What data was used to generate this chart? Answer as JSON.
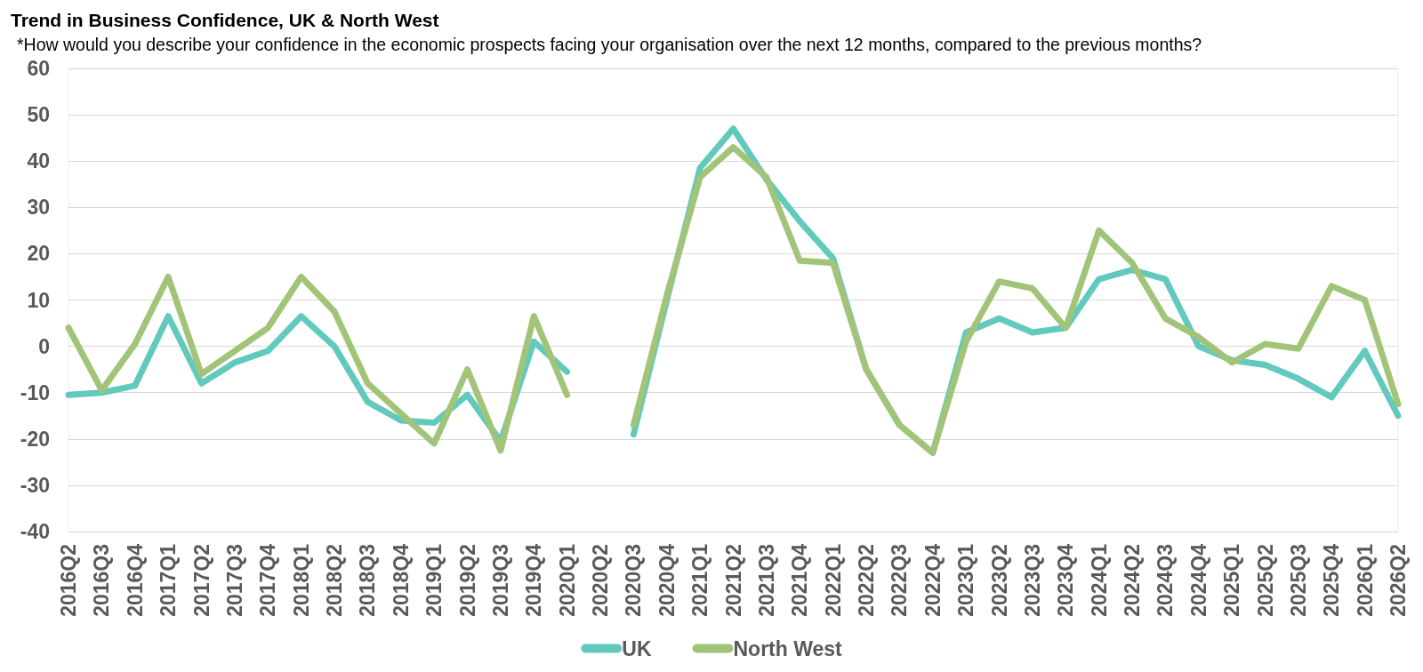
{
  "chart_data": {
    "type": "line",
    "title": "Trend in Business Confidence, UK & North West",
    "subtitle": "*How would you describe your confidence in the economic prospects facing your organisation over the next 12 months, compared to the previous months?",
    "categories": [
      "2016Q2",
      "2016Q3",
      "2016Q4",
      "2017Q1",
      "2017Q2",
      "2017Q3",
      "2017Q4",
      "2018Q1",
      "2018Q2",
      "2018Q3",
      "2018Q4",
      "2019Q1",
      "2019Q2",
      "2019Q3",
      "2019Q4",
      "2020Q1",
      "2020Q2",
      "2020Q3",
      "2020Q4",
      "2021Q1",
      "2021Q2",
      "2021Q3",
      "2021Q4",
      "2022Q1",
      "2022Q2",
      "2022Q3",
      "2022Q4",
      "2023Q1",
      "2023Q2",
      "2023Q3",
      "2023Q4",
      "2024Q1",
      "2024Q2",
      "2024Q3",
      "2024Q4",
      "2025Q1",
      "2025Q2",
      "2025Q3",
      "2025Q4",
      "2026Q1",
      "2026Q2"
    ],
    "series": [
      {
        "name": "UK",
        "color": "#62c9bd",
        "values": [
          -10.5,
          -10,
          -8.5,
          6.5,
          -8,
          -3.5,
          -1,
          6.5,
          0,
          -12,
          -16,
          -16.5,
          -10.5,
          -20.5,
          1,
          -5.5,
          null,
          -19,
          10,
          38.5,
          47,
          36,
          27,
          19,
          -5,
          -17,
          -23,
          3,
          6,
          3,
          4,
          14.5,
          16.5,
          14.5,
          0,
          -3,
          -4,
          -7,
          -11,
          -1,
          -15
        ]
      },
      {
        "name": "North West",
        "color": "#a2c479",
        "values": [
          4,
          -9.5,
          0.5,
          15,
          -6,
          -1,
          4,
          15,
          7.5,
          -8,
          -14.5,
          -21,
          -5,
          -22.5,
          6.5,
          -10.5,
          null,
          -17,
          11,
          36.5,
          43,
          36.5,
          18.5,
          18,
          -5,
          -17,
          -23,
          1,
          14,
          12.5,
          4,
          25,
          18,
          6,
          2,
          -3.5,
          0.5,
          -0.5,
          13,
          10,
          -12.5
        ]
      }
    ],
    "ylim": [
      -40,
      60
    ],
    "yticks": [
      -40,
      -30,
      -20,
      -10,
      0,
      10,
      20,
      30,
      40,
      50,
      60
    ],
    "grid": "y",
    "legend": "bottom",
    "marker": "none",
    "line_style": "solid"
  }
}
